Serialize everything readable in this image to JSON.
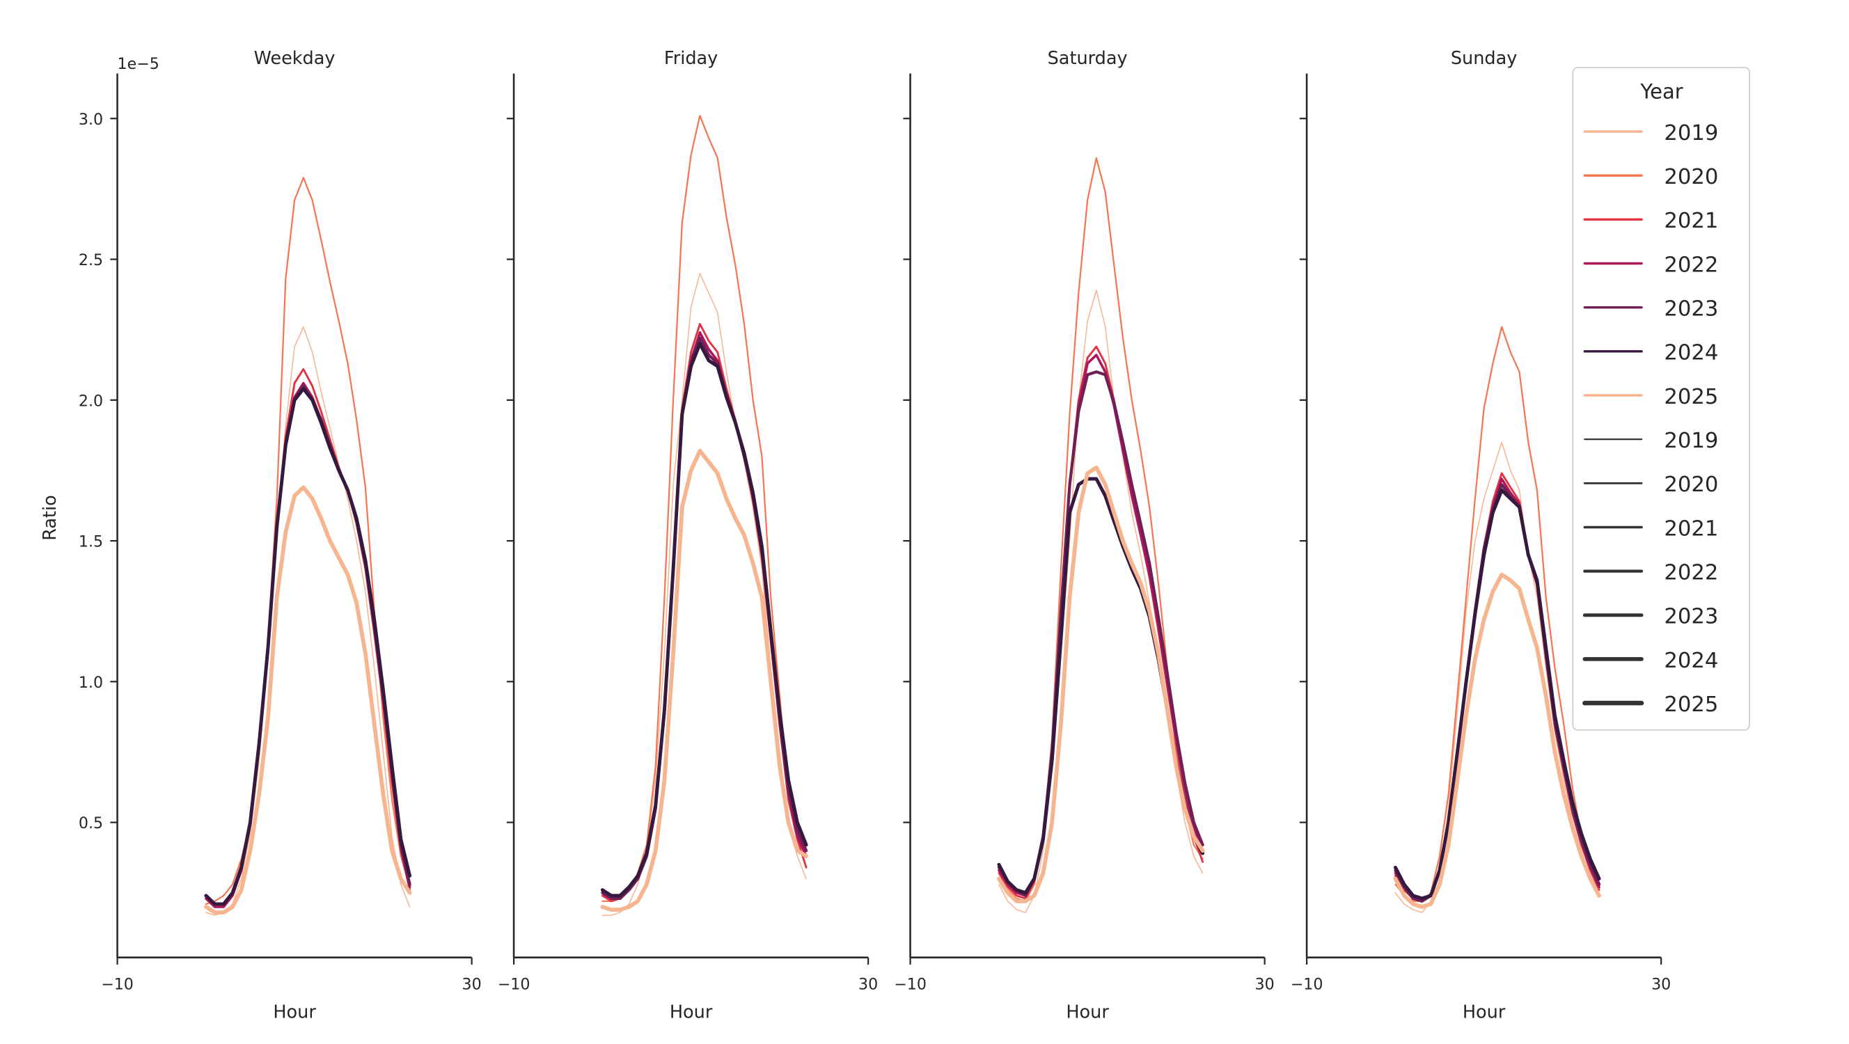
{
  "legend": {
    "title": "Year",
    "hue_entries": [
      {
        "label": "2019",
        "color": "#f6b48f"
      },
      {
        "label": "2020",
        "color": "#f37651"
      },
      {
        "label": "2021",
        "color": "#e13342"
      },
      {
        "label": "2022",
        "color": "#ad1759"
      },
      {
        "label": "2023",
        "color": "#701f57"
      },
      {
        "label": "2024",
        "color": "#35193e"
      },
      {
        "label": "2025",
        "color": "#f6b48f"
      }
    ],
    "size_entries": [
      {
        "label": "2019"
      },
      {
        "label": "2020"
      },
      {
        "label": "2021"
      },
      {
        "label": "2022"
      },
      {
        "label": "2023"
      },
      {
        "label": "2024"
      },
      {
        "label": "2025"
      }
    ],
    "size_color": "#333333"
  },
  "chart_data": [
    {
      "type": "line",
      "title": "Weekday",
      "xlabel": "Hour",
      "ylabel": "Ratio",
      "y_offset_label": "1e−5",
      "xlim": [
        -10,
        30
      ],
      "ylim": [
        0.02,
        3.16
      ],
      "xticks": [
        "−10",
        "30"
      ],
      "yticks": [
        "0.5",
        "1.0",
        "1.5",
        "2.0",
        "2.5",
        "3.0"
      ],
      "x": [
        0,
        1,
        2,
        3,
        4,
        5,
        6,
        7,
        8,
        9,
        10,
        11,
        12,
        13,
        14,
        15,
        16,
        17,
        18,
        19,
        20,
        21,
        22,
        23
      ],
      "series": [
        {
          "name": "2019",
          "color": "#f6b48f",
          "values": [
            0.18,
            0.17,
            0.18,
            0.21,
            0.3,
            0.46,
            0.72,
            1.08,
            1.55,
            1.91,
            2.19,
            2.26,
            2.17,
            2.03,
            1.9,
            1.77,
            1.65,
            1.5,
            1.32,
            1.05,
            0.75,
            0.45,
            0.28,
            0.2
          ]
        },
        {
          "name": "2020",
          "color": "#f37651",
          "values": [
            0.21,
            0.22,
            0.24,
            0.28,
            0.37,
            0.5,
            0.8,
            1.15,
            1.65,
            2.43,
            2.71,
            2.79,
            2.71,
            2.57,
            2.42,
            2.28,
            2.13,
            1.93,
            1.69,
            1.25,
            0.87,
            0.58,
            0.38,
            0.27
          ]
        },
        {
          "name": "2021",
          "color": "#e13342",
          "values": [
            0.23,
            0.21,
            0.21,
            0.25,
            0.34,
            0.5,
            0.78,
            1.12,
            1.56,
            1.87,
            2.06,
            2.11,
            2.05,
            1.96,
            1.86,
            1.76,
            1.68,
            1.56,
            1.4,
            1.17,
            0.92,
            0.64,
            0.4,
            0.26
          ]
        },
        {
          "name": "2022",
          "color": "#ad1759",
          "values": [
            0.23,
            0.2,
            0.2,
            0.24,
            0.33,
            0.49,
            0.77,
            1.11,
            1.55,
            1.85,
            2.01,
            2.06,
            2.01,
            1.93,
            1.84,
            1.75,
            1.68,
            1.57,
            1.42,
            1.19,
            0.94,
            0.67,
            0.41,
            0.27
          ]
        },
        {
          "name": "2023",
          "color": "#701f57",
          "values": [
            0.24,
            0.21,
            0.21,
            0.25,
            0.34,
            0.5,
            0.78,
            1.12,
            1.55,
            1.84,
            2.0,
            2.05,
            2.0,
            1.93,
            1.84,
            1.75,
            1.68,
            1.57,
            1.42,
            1.2,
            0.95,
            0.68,
            0.42,
            0.28
          ]
        },
        {
          "name": "2024",
          "color": "#35193e",
          "values": [
            0.24,
            0.21,
            0.21,
            0.25,
            0.34,
            0.5,
            0.78,
            1.12,
            1.55,
            1.84,
            2.0,
            2.04,
            2.0,
            1.92,
            1.83,
            1.75,
            1.68,
            1.58,
            1.43,
            1.22,
            0.97,
            0.7,
            0.44,
            0.31
          ]
        },
        {
          "name": "2025",
          "color": "#f6b48f",
          "values": [
            0.2,
            0.18,
            0.18,
            0.2,
            0.26,
            0.4,
            0.6,
            0.87,
            1.3,
            1.53,
            1.66,
            1.69,
            1.65,
            1.58,
            1.5,
            1.44,
            1.38,
            1.28,
            1.1,
            0.85,
            0.6,
            0.4,
            0.3,
            0.25
          ]
        }
      ]
    },
    {
      "type": "line",
      "title": "Friday",
      "xlabel": "Hour",
      "xlim": [
        -10,
        30
      ],
      "ylim": [
        0.02,
        3.16
      ],
      "xticks": [
        "−10",
        "30"
      ],
      "x": [
        0,
        1,
        2,
        3,
        4,
        5,
        6,
        7,
        8,
        9,
        10,
        11,
        12,
        13,
        14,
        15,
        16,
        17,
        18,
        19,
        20,
        21,
        22,
        23
      ],
      "series": [
        {
          "name": "2019",
          "color": "#f6b48f",
          "values": [
            0.17,
            0.17,
            0.18,
            0.21,
            0.28,
            0.4,
            0.65,
            1.1,
            1.7,
            2.0,
            2.33,
            2.45,
            2.38,
            2.31,
            2.1,
            1.92,
            1.78,
            1.62,
            1.4,
            1.05,
            0.75,
            0.5,
            0.38,
            0.3
          ]
        },
        {
          "name": "2020",
          "color": "#f37651",
          "values": [
            0.22,
            0.22,
            0.23,
            0.26,
            0.32,
            0.42,
            0.7,
            1.3,
            2.0,
            2.63,
            2.87,
            3.01,
            2.93,
            2.86,
            2.65,
            2.48,
            2.27,
            2.0,
            1.8,
            1.3,
            0.95,
            0.6,
            0.45,
            0.38
          ]
        },
        {
          "name": "2021",
          "color": "#e13342",
          "values": [
            0.24,
            0.22,
            0.23,
            0.26,
            0.3,
            0.38,
            0.55,
            0.9,
            1.4,
            1.97,
            2.17,
            2.27,
            2.21,
            2.17,
            2.04,
            1.93,
            1.8,
            1.64,
            1.44,
            1.14,
            0.84,
            0.58,
            0.44,
            0.34
          ]
        },
        {
          "name": "2022",
          "color": "#ad1759",
          "values": [
            0.25,
            0.23,
            0.23,
            0.26,
            0.3,
            0.38,
            0.55,
            0.9,
            1.4,
            1.95,
            2.14,
            2.24,
            2.18,
            2.14,
            2.02,
            1.92,
            1.8,
            1.66,
            1.46,
            1.16,
            0.86,
            0.6,
            0.45,
            0.38
          ]
        },
        {
          "name": "2023",
          "color": "#701f57",
          "values": [
            0.25,
            0.23,
            0.23,
            0.26,
            0.3,
            0.38,
            0.55,
            0.9,
            1.4,
            1.95,
            2.13,
            2.22,
            2.16,
            2.13,
            2.02,
            1.92,
            1.8,
            1.66,
            1.46,
            1.17,
            0.87,
            0.62,
            0.47,
            0.4
          ]
        },
        {
          "name": "2024",
          "color": "#35193e",
          "values": [
            0.26,
            0.24,
            0.24,
            0.27,
            0.31,
            0.39,
            0.56,
            0.9,
            1.4,
            1.95,
            2.12,
            2.2,
            2.14,
            2.12,
            2.01,
            1.92,
            1.81,
            1.67,
            1.48,
            1.18,
            0.89,
            0.65,
            0.5,
            0.42
          ]
        },
        {
          "name": "2025",
          "color": "#f6b48f",
          "values": [
            0.2,
            0.19,
            0.19,
            0.2,
            0.22,
            0.28,
            0.4,
            0.65,
            1.1,
            1.62,
            1.75,
            1.82,
            1.78,
            1.74,
            1.65,
            1.58,
            1.52,
            1.42,
            1.3,
            1.0,
            0.7,
            0.5,
            0.4,
            0.38
          ]
        }
      ]
    },
    {
      "type": "line",
      "title": "Saturday",
      "xlabel": "Hour",
      "xlim": [
        -10,
        30
      ],
      "ylim": [
        0.02,
        3.16
      ],
      "xticks": [
        "−10",
        "30"
      ],
      "x": [
        0,
        1,
        2,
        3,
        4,
        5,
        6,
        7,
        8,
        9,
        10,
        11,
        12,
        13,
        14,
        15,
        16,
        17,
        18,
        19,
        20,
        21,
        22,
        23
      ],
      "series": [
        {
          "name": "2019",
          "color": "#f6b48f",
          "values": [
            0.28,
            0.22,
            0.19,
            0.18,
            0.24,
            0.4,
            0.7,
            1.1,
            1.5,
            2.0,
            2.28,
            2.39,
            2.26,
            2.0,
            1.8,
            1.6,
            1.45,
            1.28,
            1.08,
            0.88,
            0.68,
            0.5,
            0.38,
            0.32
          ]
        },
        {
          "name": "2020",
          "color": "#f37651",
          "values": [
            0.3,
            0.26,
            0.23,
            0.22,
            0.28,
            0.45,
            0.8,
            1.4,
            1.95,
            2.38,
            2.71,
            2.86,
            2.74,
            2.48,
            2.22,
            2.0,
            1.82,
            1.62,
            1.35,
            1.05,
            0.75,
            0.55,
            0.42,
            0.37
          ]
        },
        {
          "name": "2021",
          "color": "#e13342",
          "values": [
            0.32,
            0.27,
            0.24,
            0.23,
            0.29,
            0.44,
            0.74,
            1.24,
            1.7,
            2.0,
            2.15,
            2.19,
            2.13,
            2.0,
            1.83,
            1.67,
            1.52,
            1.37,
            1.18,
            0.98,
            0.78,
            0.6,
            0.45,
            0.36
          ]
        },
        {
          "name": "2022",
          "color": "#ad1759",
          "values": [
            0.33,
            0.28,
            0.25,
            0.24,
            0.3,
            0.45,
            0.75,
            1.25,
            1.7,
            1.98,
            2.13,
            2.16,
            2.1,
            1.98,
            1.82,
            1.66,
            1.52,
            1.38,
            1.2,
            1.0,
            0.8,
            0.62,
            0.48,
            0.4
          ]
        },
        {
          "name": "2023",
          "color": "#701f57",
          "values": [
            0.34,
            0.29,
            0.26,
            0.24,
            0.3,
            0.45,
            0.75,
            1.25,
            1.7,
            1.96,
            2.09,
            2.1,
            2.09,
            1.99,
            1.85,
            1.7,
            1.56,
            1.42,
            1.23,
            1.03,
            0.82,
            0.64,
            0.5,
            0.42
          ]
        },
        {
          "name": "2024",
          "color": "#35193e",
          "values": [
            0.35,
            0.29,
            0.26,
            0.25,
            0.3,
            0.44,
            0.72,
            1.15,
            1.6,
            1.7,
            1.72,
            1.72,
            1.66,
            1.57,
            1.48,
            1.4,
            1.33,
            1.23,
            1.08,
            0.9,
            0.71,
            0.56,
            0.45,
            0.39
          ]
        },
        {
          "name": "2025",
          "color": "#f6b48f",
          "values": [
            0.3,
            0.25,
            0.22,
            0.22,
            0.24,
            0.32,
            0.5,
            0.85,
            1.3,
            1.6,
            1.74,
            1.76,
            1.7,
            1.6,
            1.5,
            1.42,
            1.35,
            1.25,
            1.1,
            0.9,
            0.7,
            0.55,
            0.45,
            0.4
          ]
        }
      ]
    },
    {
      "type": "line",
      "title": "Sunday",
      "xlabel": "Hour",
      "xlim": [
        -10,
        30
      ],
      "ylim": [
        0.02,
        3.16
      ],
      "xticks": [
        "−10",
        "30"
      ],
      "x": [
        0,
        1,
        2,
        3,
        4,
        5,
        6,
        7,
        8,
        9,
        10,
        11,
        12,
        13,
        14,
        15,
        16,
        17,
        18,
        19,
        20,
        21,
        22,
        23
      ],
      "series": [
        {
          "name": "2019",
          "color": "#f6b48f",
          "values": [
            0.25,
            0.21,
            0.19,
            0.18,
            0.22,
            0.32,
            0.55,
            0.9,
            1.25,
            1.5,
            1.65,
            1.75,
            1.85,
            1.75,
            1.68,
            1.45,
            1.3,
            1.05,
            0.82,
            0.65,
            0.5,
            0.4,
            0.3,
            0.24
          ]
        },
        {
          "name": "2020",
          "color": "#f37651",
          "values": [
            0.28,
            0.24,
            0.22,
            0.22,
            0.25,
            0.38,
            0.6,
            0.95,
            1.3,
            1.65,
            1.97,
            2.13,
            2.26,
            2.17,
            2.1,
            1.85,
            1.68,
            1.3,
            1.05,
            0.85,
            0.62,
            0.45,
            0.35,
            0.27
          ]
        },
        {
          "name": "2021",
          "color": "#e13342",
          "values": [
            0.31,
            0.26,
            0.23,
            0.22,
            0.24,
            0.33,
            0.5,
            0.75,
            1.0,
            1.25,
            1.48,
            1.64,
            1.74,
            1.69,
            1.64,
            1.45,
            1.34,
            1.08,
            0.84,
            0.68,
            0.53,
            0.42,
            0.33,
            0.26
          ]
        },
        {
          "name": "2022",
          "color": "#ad1759",
          "values": [
            0.32,
            0.27,
            0.23,
            0.22,
            0.24,
            0.33,
            0.5,
            0.75,
            1.0,
            1.25,
            1.47,
            1.62,
            1.72,
            1.67,
            1.63,
            1.45,
            1.35,
            1.09,
            0.85,
            0.69,
            0.54,
            0.43,
            0.34,
            0.27
          ]
        },
        {
          "name": "2023",
          "color": "#701f57",
          "values": [
            0.33,
            0.27,
            0.23,
            0.22,
            0.24,
            0.33,
            0.5,
            0.75,
            1.0,
            1.25,
            1.47,
            1.61,
            1.7,
            1.66,
            1.62,
            1.45,
            1.35,
            1.1,
            0.86,
            0.7,
            0.55,
            0.44,
            0.35,
            0.28
          ]
        },
        {
          "name": "2024",
          "color": "#35193e",
          "values": [
            0.34,
            0.28,
            0.24,
            0.23,
            0.24,
            0.33,
            0.5,
            0.75,
            1.0,
            1.24,
            1.45,
            1.6,
            1.68,
            1.65,
            1.62,
            1.45,
            1.36,
            1.12,
            0.88,
            0.72,
            0.57,
            0.46,
            0.37,
            0.3
          ]
        },
        {
          "name": "2025",
          "color": "#f6b48f",
          "values": [
            0.3,
            0.24,
            0.21,
            0.2,
            0.21,
            0.28,
            0.42,
            0.65,
            0.88,
            1.08,
            1.22,
            1.32,
            1.38,
            1.36,
            1.33,
            1.22,
            1.12,
            0.95,
            0.75,
            0.6,
            0.48,
            0.38,
            0.3,
            0.24
          ]
        }
      ]
    }
  ]
}
